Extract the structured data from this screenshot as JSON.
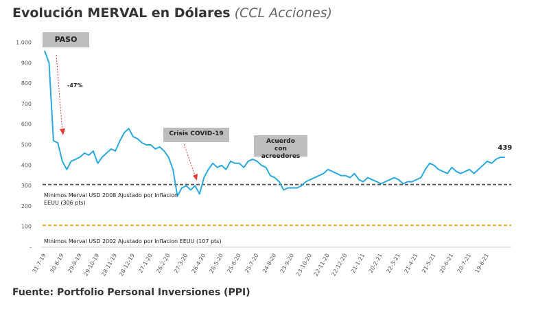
{
  "chart_data": {
    "type": "line",
    "title": "Evolución MERVAL en Dólares",
    "subtitle": "(CCL Acciones)",
    "source": "Fuente: Portfolio Personal Inversiones (PPI)",
    "categories": [
      "31-7-19",
      null,
      null,
      null,
      "30-8-19",
      null,
      null,
      null,
      "29-9-19",
      null,
      null,
      null,
      "29-10-19",
      null,
      null,
      null,
      "28-11-19",
      null,
      null,
      null,
      "28-12-19",
      null,
      null,
      null,
      "27-1-20",
      null,
      null,
      null,
      "26-2-20",
      null,
      null,
      null,
      "27-3-20",
      null,
      null,
      null,
      "26-4-20",
      null,
      null,
      null,
      "26-5-20",
      null,
      null,
      null,
      "25-6-20",
      null,
      null,
      null,
      "25-7-20",
      null,
      null,
      null,
      "24-8-20",
      null,
      null,
      null,
      "23-9-20",
      null,
      null,
      null,
      "23-10-20",
      null,
      null,
      null,
      "22-11-20",
      null,
      null,
      null,
      "22-12-20",
      null,
      null,
      null,
      "21-1-21",
      null,
      null,
      null,
      "20-2-21",
      null,
      null,
      null,
      "22-3-21",
      null,
      null,
      null,
      "21-4-21",
      null,
      null,
      null,
      "21-5-21",
      null,
      null,
      null,
      "20-6-21",
      null,
      null,
      null,
      "20-7-21",
      null,
      null,
      null,
      "19-8-21",
      null,
      null,
      null,
      null
    ],
    "series": [
      {
        "name": "MERVAL USD",
        "color": "#29a9e0",
        "values": [
          960,
          900,
          520,
          510,
          420,
          380,
          420,
          430,
          440,
          460,
          450,
          470,
          410,
          440,
          460,
          480,
          470,
          520,
          560,
          580,
          540,
          530,
          510,
          500,
          500,
          480,
          490,
          470,
          440,
          380,
          250,
          290,
          300,
          280,
          300,
          260,
          340,
          380,
          410,
          390,
          400,
          380,
          420,
          410,
          410,
          390,
          420,
          430,
          420,
          400,
          390,
          350,
          340,
          320,
          280,
          290,
          290,
          290,
          300,
          320,
          330,
          340,
          350,
          360,
          380,
          370,
          360,
          350,
          350,
          340,
          360,
          330,
          320,
          340,
          330,
          320,
          310,
          320,
          330,
          340,
          330,
          310,
          320,
          320,
          330,
          340,
          380,
          410,
          400,
          380,
          370,
          360,
          390,
          370,
          360,
          370,
          380,
          360,
          380,
          400,
          420,
          410,
          430,
          440,
          439
        ]
      }
    ],
    "ylim": [
      0,
      1000
    ],
    "yticks": [
      {
        "value": 1000,
        "label": "1.000"
      },
      900,
      800,
      700,
      600,
      500,
      400,
      300,
      200,
      100,
      {
        "value": 0,
        "label": "-"
      }
    ],
    "reference_lines": [
      {
        "value": 306,
        "label": "Minimos Merval USD 2008 Ajustado por Inflacion EEUU (306 pts)",
        "color": "#555555"
      },
      {
        "value": 107,
        "label": "Minimos Merval USD 2002 Ajustado por Inflacion EEUU (107 pts)",
        "color": "#e6b422"
      }
    ],
    "annotations": {
      "paso": "PASO",
      "drop": "-47%",
      "covid": "Crisis COVID-19",
      "acuerdo": "Acuerdo con acreedores"
    }
  }
}
